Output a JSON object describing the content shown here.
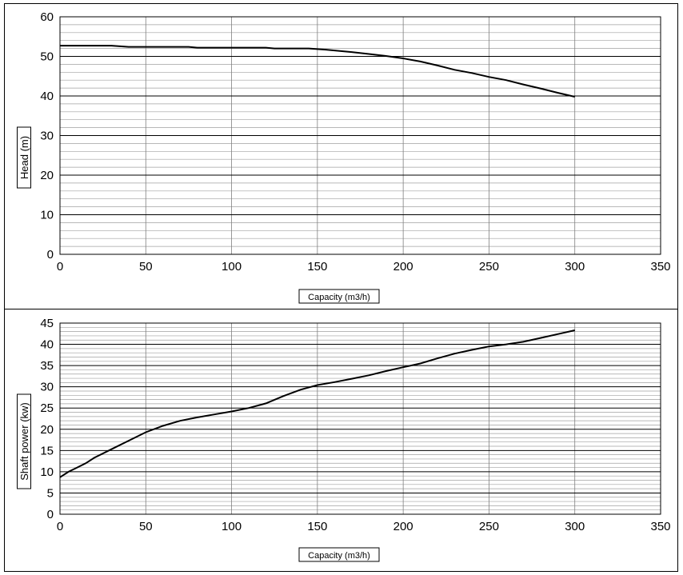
{
  "chart_data": [
    {
      "type": "line",
      "title": "",
      "xlabel": "Capacity (m3/h)",
      "ylabel": "Head (m)",
      "xlim": [
        0,
        350
      ],
      "ylim": [
        0,
        60
      ],
      "x_ticks": [
        "0",
        "50",
        "100",
        "150",
        "200",
        "250",
        "300",
        "350"
      ],
      "y_ticks": [
        "0",
        "10",
        "20",
        "30",
        "40",
        "50",
        "60"
      ],
      "grid": true,
      "legend": "none",
      "series": [
        {
          "color": "#000000",
          "points": [
            [
              0,
              52.7
            ],
            [
              30,
              52.7
            ],
            [
              40,
              52.4
            ],
            [
              75,
              52.4
            ],
            [
              80,
              52.2
            ],
            [
              120,
              52.2
            ],
            [
              125,
              52.0
            ],
            [
              145,
              52.0
            ],
            [
              155,
              51.7
            ],
            [
              170,
              51.1
            ],
            [
              180,
              50.6
            ],
            [
              190,
              50.1
            ],
            [
              200,
              49.5
            ],
            [
              210,
              48.7
            ],
            [
              220,
              47.7
            ],
            [
              230,
              46.6
            ],
            [
              240,
              45.8
            ],
            [
              250,
              44.8
            ],
            [
              260,
              44.0
            ],
            [
              270,
              42.9
            ],
            [
              280,
              41.9
            ],
            [
              290,
              40.8
            ],
            [
              300,
              39.8
            ]
          ]
        }
      ]
    },
    {
      "type": "line",
      "title": "",
      "xlabel": "Capacity (m3/h)",
      "ylabel": "Shaft power (kw)",
      "xlim": [
        0,
        350
      ],
      "ylim": [
        0,
        45
      ],
      "x_ticks": [
        "0",
        "50",
        "100",
        "150",
        "200",
        "250",
        "300",
        "350"
      ],
      "y_ticks": [
        "0",
        "5",
        "10",
        "15",
        "20",
        "25",
        "30",
        "35",
        "40",
        "45"
      ],
      "grid": true,
      "legend": "none",
      "series": [
        {
          "color": "#000000",
          "points": [
            [
              0,
              8.7
            ],
            [
              5,
              10.0
            ],
            [
              10,
              11.0
            ],
            [
              15,
              12.0
            ],
            [
              20,
              13.3
            ],
            [
              30,
              15.3
            ],
            [
              40,
              17.3
            ],
            [
              50,
              19.3
            ],
            [
              60,
              20.8
            ],
            [
              70,
              22.0
            ],
            [
              80,
              22.8
            ],
            [
              90,
              23.5
            ],
            [
              100,
              24.2
            ],
            [
              110,
              25.0
            ],
            [
              120,
              26.1
            ],
            [
              130,
              27.8
            ],
            [
              140,
              29.3
            ],
            [
              150,
              30.4
            ],
            [
              160,
              31.1
            ],
            [
              170,
              31.9
            ],
            [
              180,
              32.7
            ],
            [
              190,
              33.7
            ],
            [
              200,
              34.6
            ],
            [
              210,
              35.5
            ],
            [
              220,
              36.7
            ],
            [
              230,
              37.8
            ],
            [
              240,
              38.7
            ],
            [
              250,
              39.5
            ],
            [
              260,
              40.0
            ],
            [
              270,
              40.6
            ],
            [
              280,
              41.5
            ],
            [
              290,
              42.4
            ],
            [
              300,
              43.3
            ]
          ]
        }
      ]
    }
  ]
}
